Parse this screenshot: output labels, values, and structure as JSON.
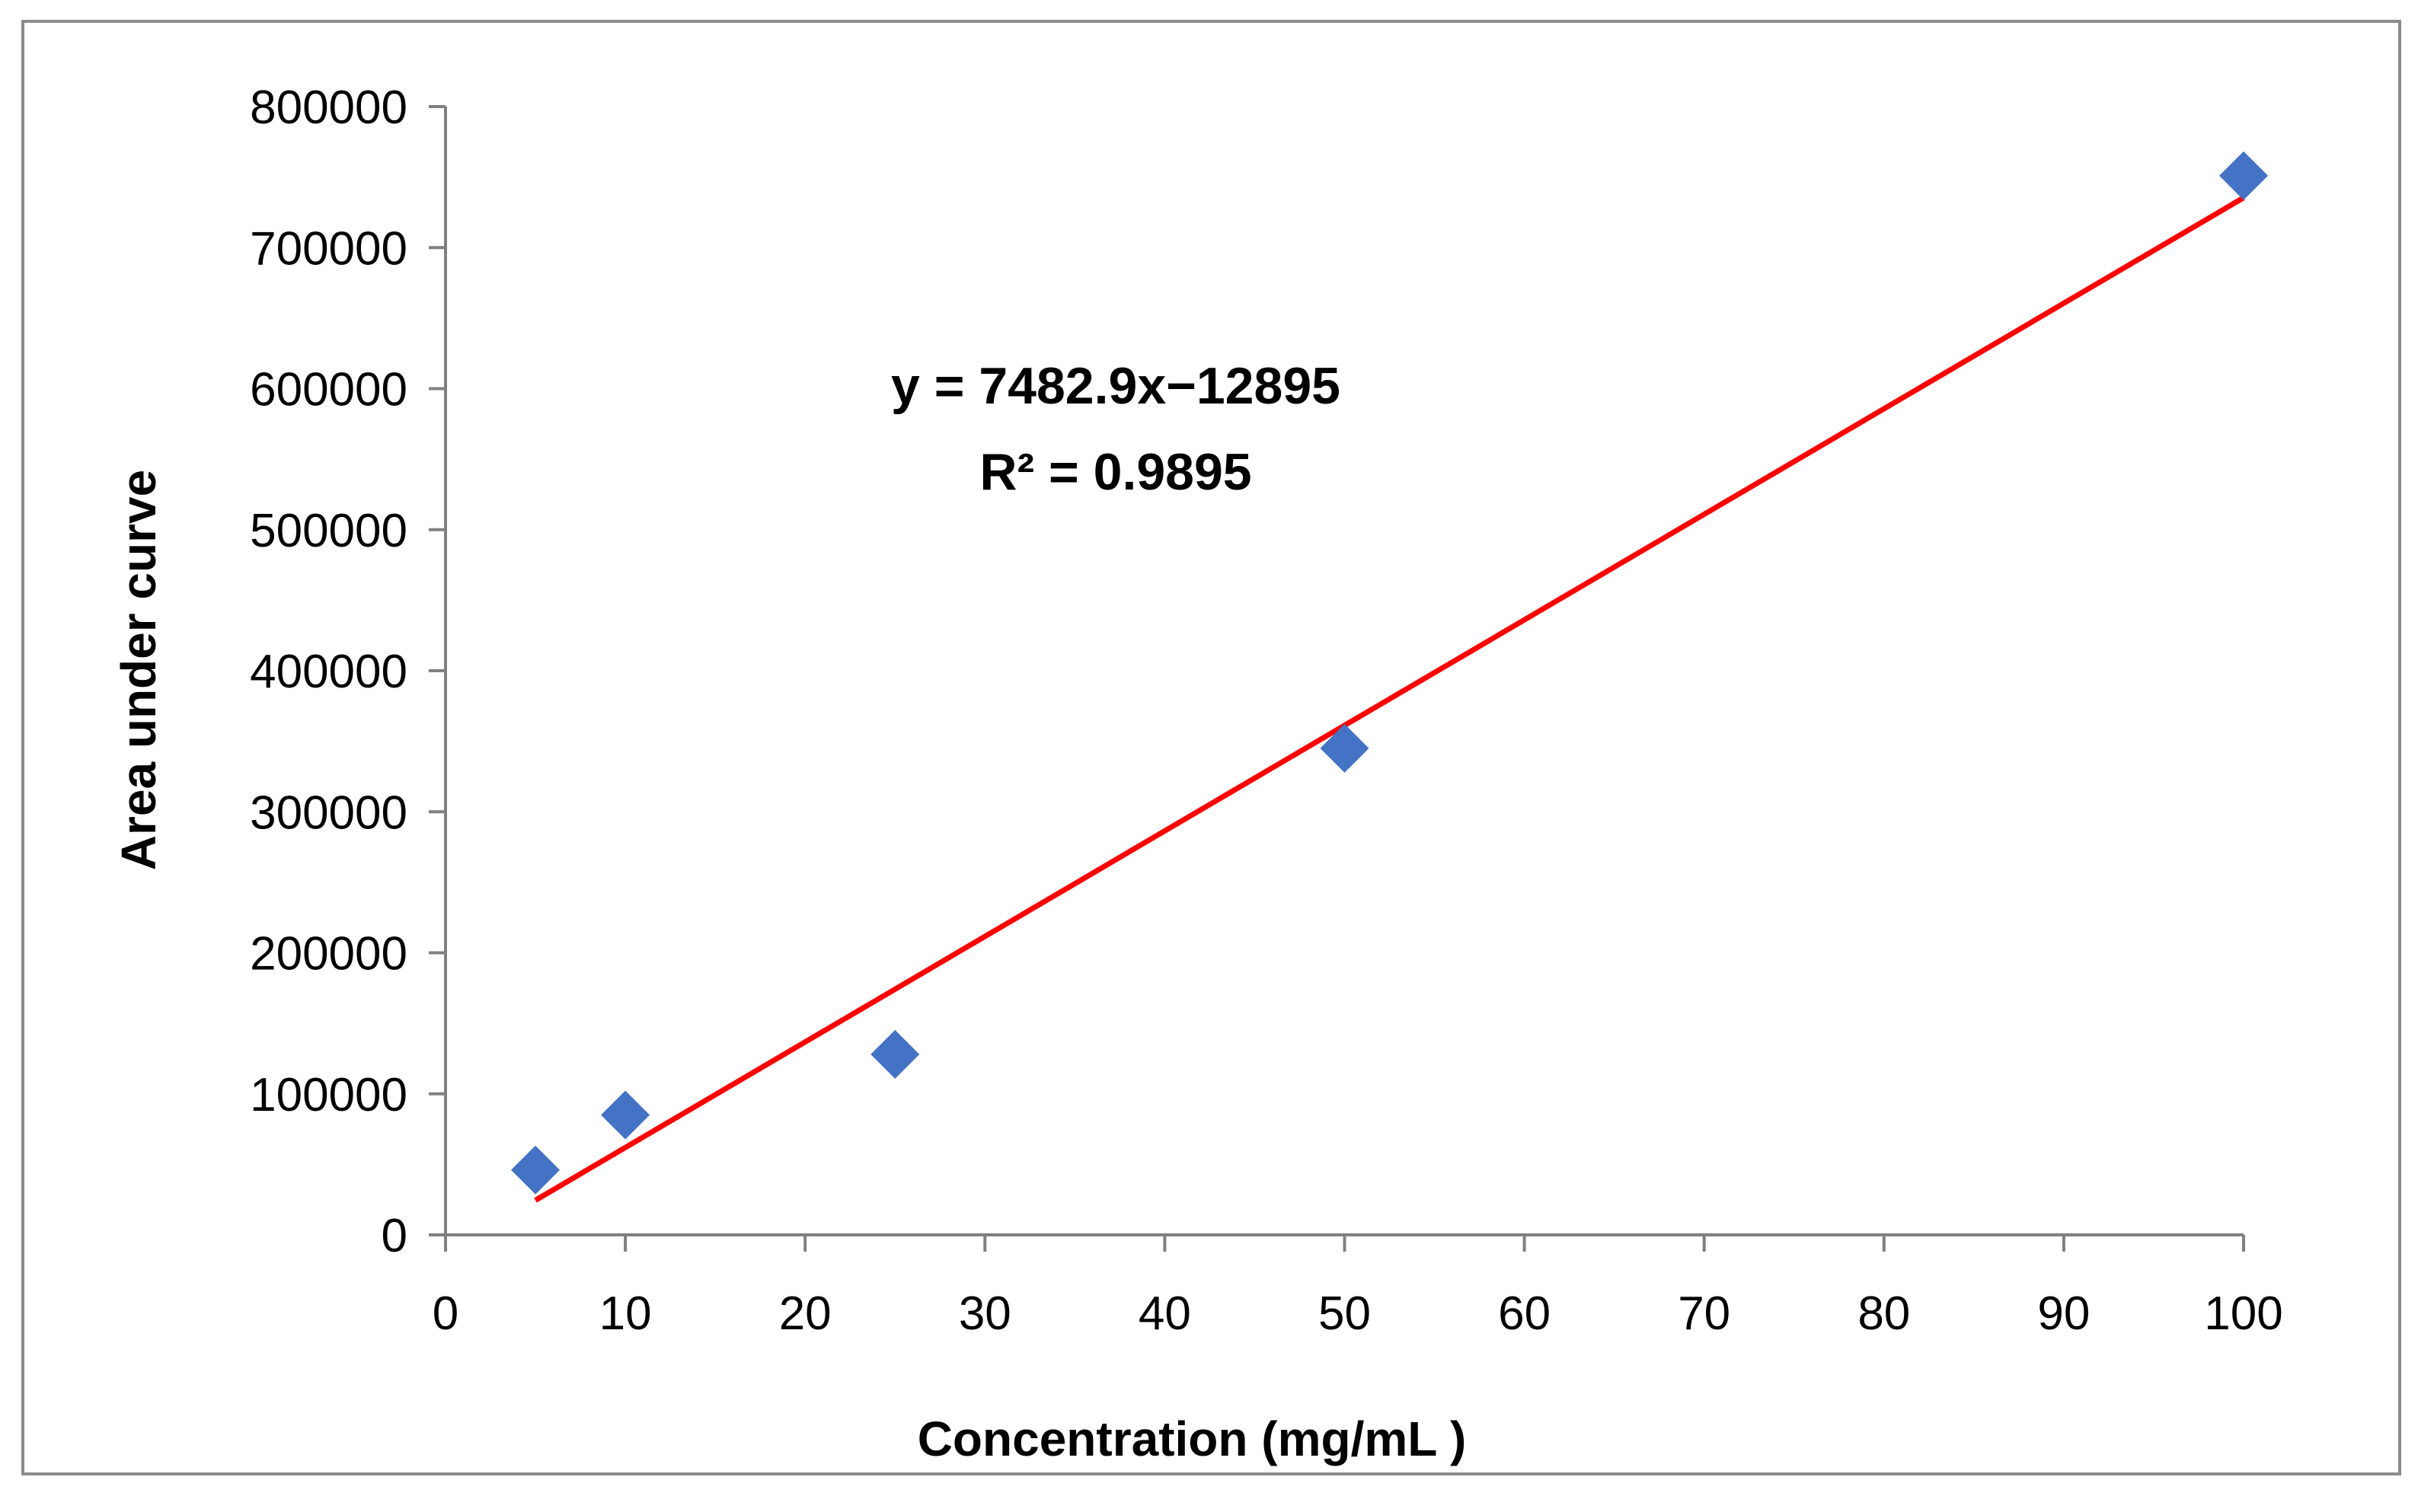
{
  "chart_data": {
    "type": "scatter",
    "title": "",
    "xlabel": "Concentration (mg/mL )",
    "ylabel": "Area under curve",
    "xlim": [
      0,
      100
    ],
    "ylim": [
      0,
      800000
    ],
    "xticks": [
      0,
      10,
      20,
      30,
      40,
      50,
      60,
      70,
      80,
      90,
      100
    ],
    "yticks": [
      0,
      100000,
      200000,
      300000,
      400000,
      500000,
      600000,
      700000,
      800000
    ],
    "grid": false,
    "legend": "none",
    "series": [
      {
        "name": "Area under curve",
        "marker": "diamond",
        "color": "#4472c4",
        "x": [
          5,
          10,
          25,
          50,
          100
        ],
        "y": [
          46000,
          85000,
          128000,
          345000,
          751000
        ]
      }
    ],
    "trendline": {
      "type": "linear",
      "color": "#ff0000",
      "slope": 7482.9,
      "intercept": -12895,
      "x_range": [
        5,
        100
      ],
      "equation_label": "y = 7482.9x−12895",
      "r2_label": "R² = 0.9895"
    },
    "axis_color": "#808080",
    "frame_color": "#8c8c8c"
  }
}
